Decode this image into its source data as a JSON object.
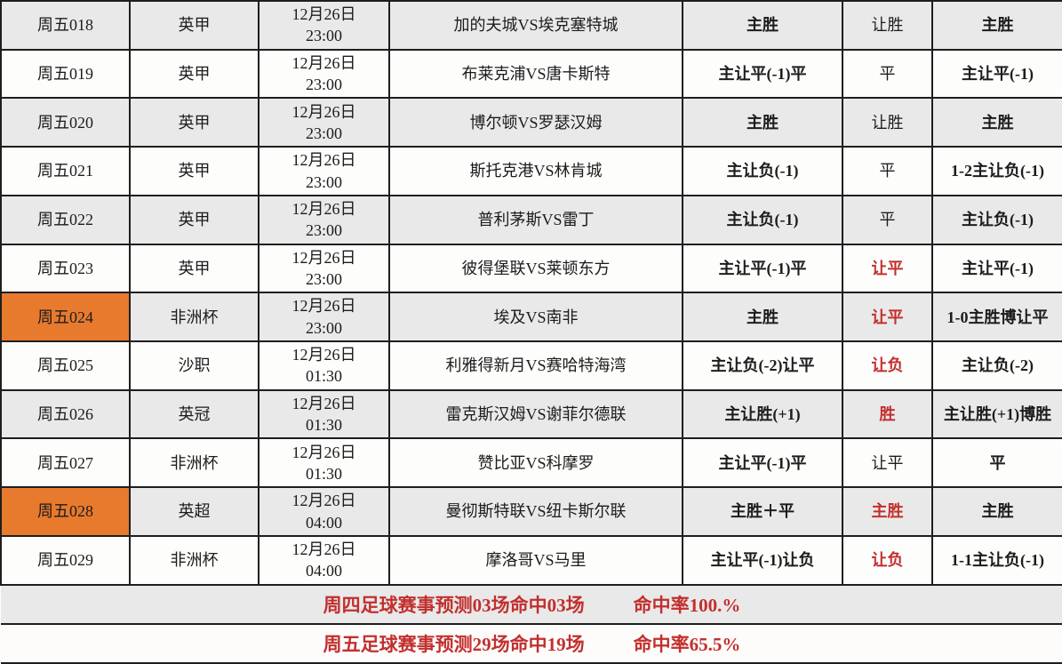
{
  "colors": {
    "row_shaded_bg": "#e9e9e9",
    "row_plain_bg": "#fdfdfc",
    "highlight_orange": "#e87a2e",
    "accent_red": "#c22f2e",
    "text_black": "#1c1c1c",
    "border": "#1e1e1e"
  },
  "table": {
    "rows": [
      {
        "id": "周五018",
        "league": "英甲",
        "date": "12月26日",
        "time": "23:00",
        "match": "加的夫城VS埃克塞特城",
        "prediction": "主胜",
        "outcome": "让胜",
        "outcome_red": false,
        "recommendation": "主胜",
        "id_highlight": false,
        "shaded": true
      },
      {
        "id": "周五019",
        "league": "英甲",
        "date": "12月26日",
        "time": "23:00",
        "match": "布莱克浦VS唐卡斯特",
        "prediction": "主让平(-1)平",
        "outcome": "平",
        "outcome_red": false,
        "recommendation": "主让平(-1)",
        "id_highlight": false,
        "shaded": false
      },
      {
        "id": "周五020",
        "league": "英甲",
        "date": "12月26日",
        "time": "23:00",
        "match": "博尔顿VS罗瑟汉姆",
        "prediction": "主胜",
        "outcome": "让胜",
        "outcome_red": false,
        "recommendation": "主胜",
        "id_highlight": false,
        "shaded": true
      },
      {
        "id": "周五021",
        "league": "英甲",
        "date": "12月26日",
        "time": "23:00",
        "match": "斯托克港VS林肯城",
        "prediction": "主让负(-1)",
        "outcome": "平",
        "outcome_red": false,
        "recommendation": "1-2主让负(-1)",
        "id_highlight": false,
        "shaded": false
      },
      {
        "id": "周五022",
        "league": "英甲",
        "date": "12月26日",
        "time": "23:00",
        "match": "普利茅斯VS雷丁",
        "prediction": "主让负(-1)",
        "outcome": "平",
        "outcome_red": false,
        "recommendation": "主让负(-1)",
        "id_highlight": false,
        "shaded": true
      },
      {
        "id": "周五023",
        "league": "英甲",
        "date": "12月26日",
        "time": "23:00",
        "match": "彼得堡联VS莱顿东方",
        "prediction": "主让平(-1)平",
        "outcome": "让平",
        "outcome_red": true,
        "recommendation": "主让平(-1)",
        "id_highlight": false,
        "shaded": false
      },
      {
        "id": "周五024",
        "league": "非洲杯",
        "date": "12月26日",
        "time": "23:00",
        "match": "埃及VS南非",
        "prediction": "主胜",
        "outcome": "让平",
        "outcome_red": true,
        "recommendation": "1-0主胜博让平",
        "id_highlight": true,
        "shaded": true
      },
      {
        "id": "周五025",
        "league": "沙职",
        "date": "12月26日",
        "time": "01:30",
        "match": "利雅得新月VS赛哈特海湾",
        "prediction": "主让负(-2)让平",
        "outcome": "让负",
        "outcome_red": true,
        "recommendation": "主让负(-2)",
        "id_highlight": false,
        "shaded": false
      },
      {
        "id": "周五026",
        "league": "英冠",
        "date": "12月26日",
        "time": "01:30",
        "match": "雷克斯汉姆VS谢菲尔德联",
        "prediction": "主让胜(+1)",
        "outcome": "胜",
        "outcome_red": true,
        "recommendation": "主让胜(+1)博胜",
        "id_highlight": false,
        "shaded": true
      },
      {
        "id": "周五027",
        "league": "非洲杯",
        "date": "12月26日",
        "time": "01:30",
        "match": "赞比亚VS科摩罗",
        "prediction": "主让平(-1)平",
        "outcome": "让平",
        "outcome_red": false,
        "recommendation": "平",
        "id_highlight": false,
        "shaded": false
      },
      {
        "id": "周五028",
        "league": "英超",
        "date": "12月26日",
        "time": "04:00",
        "match": "曼彻斯特联VS纽卡斯尔联",
        "prediction": "主胜＋平",
        "outcome": "主胜",
        "outcome_red": true,
        "recommendation": "主胜",
        "id_highlight": true,
        "shaded": true
      },
      {
        "id": "周五029",
        "league": "非洲杯",
        "date": "12月26日",
        "time": "04:00",
        "match": "摩洛哥VS马里",
        "prediction": "主让平(-1)让负",
        "outcome": "让负",
        "outcome_red": true,
        "recommendation": "1-1主让负(-1)",
        "id_highlight": false,
        "shaded": false
      }
    ]
  },
  "summary": {
    "rows": [
      {
        "stats": "周四足球赛事预测03场命中03场",
        "rate": "命中率100.%",
        "shaded": true
      },
      {
        "stats": "周五足球赛事预测29场命中19场",
        "rate": "命中率65.5%",
        "shaded": false
      }
    ]
  }
}
